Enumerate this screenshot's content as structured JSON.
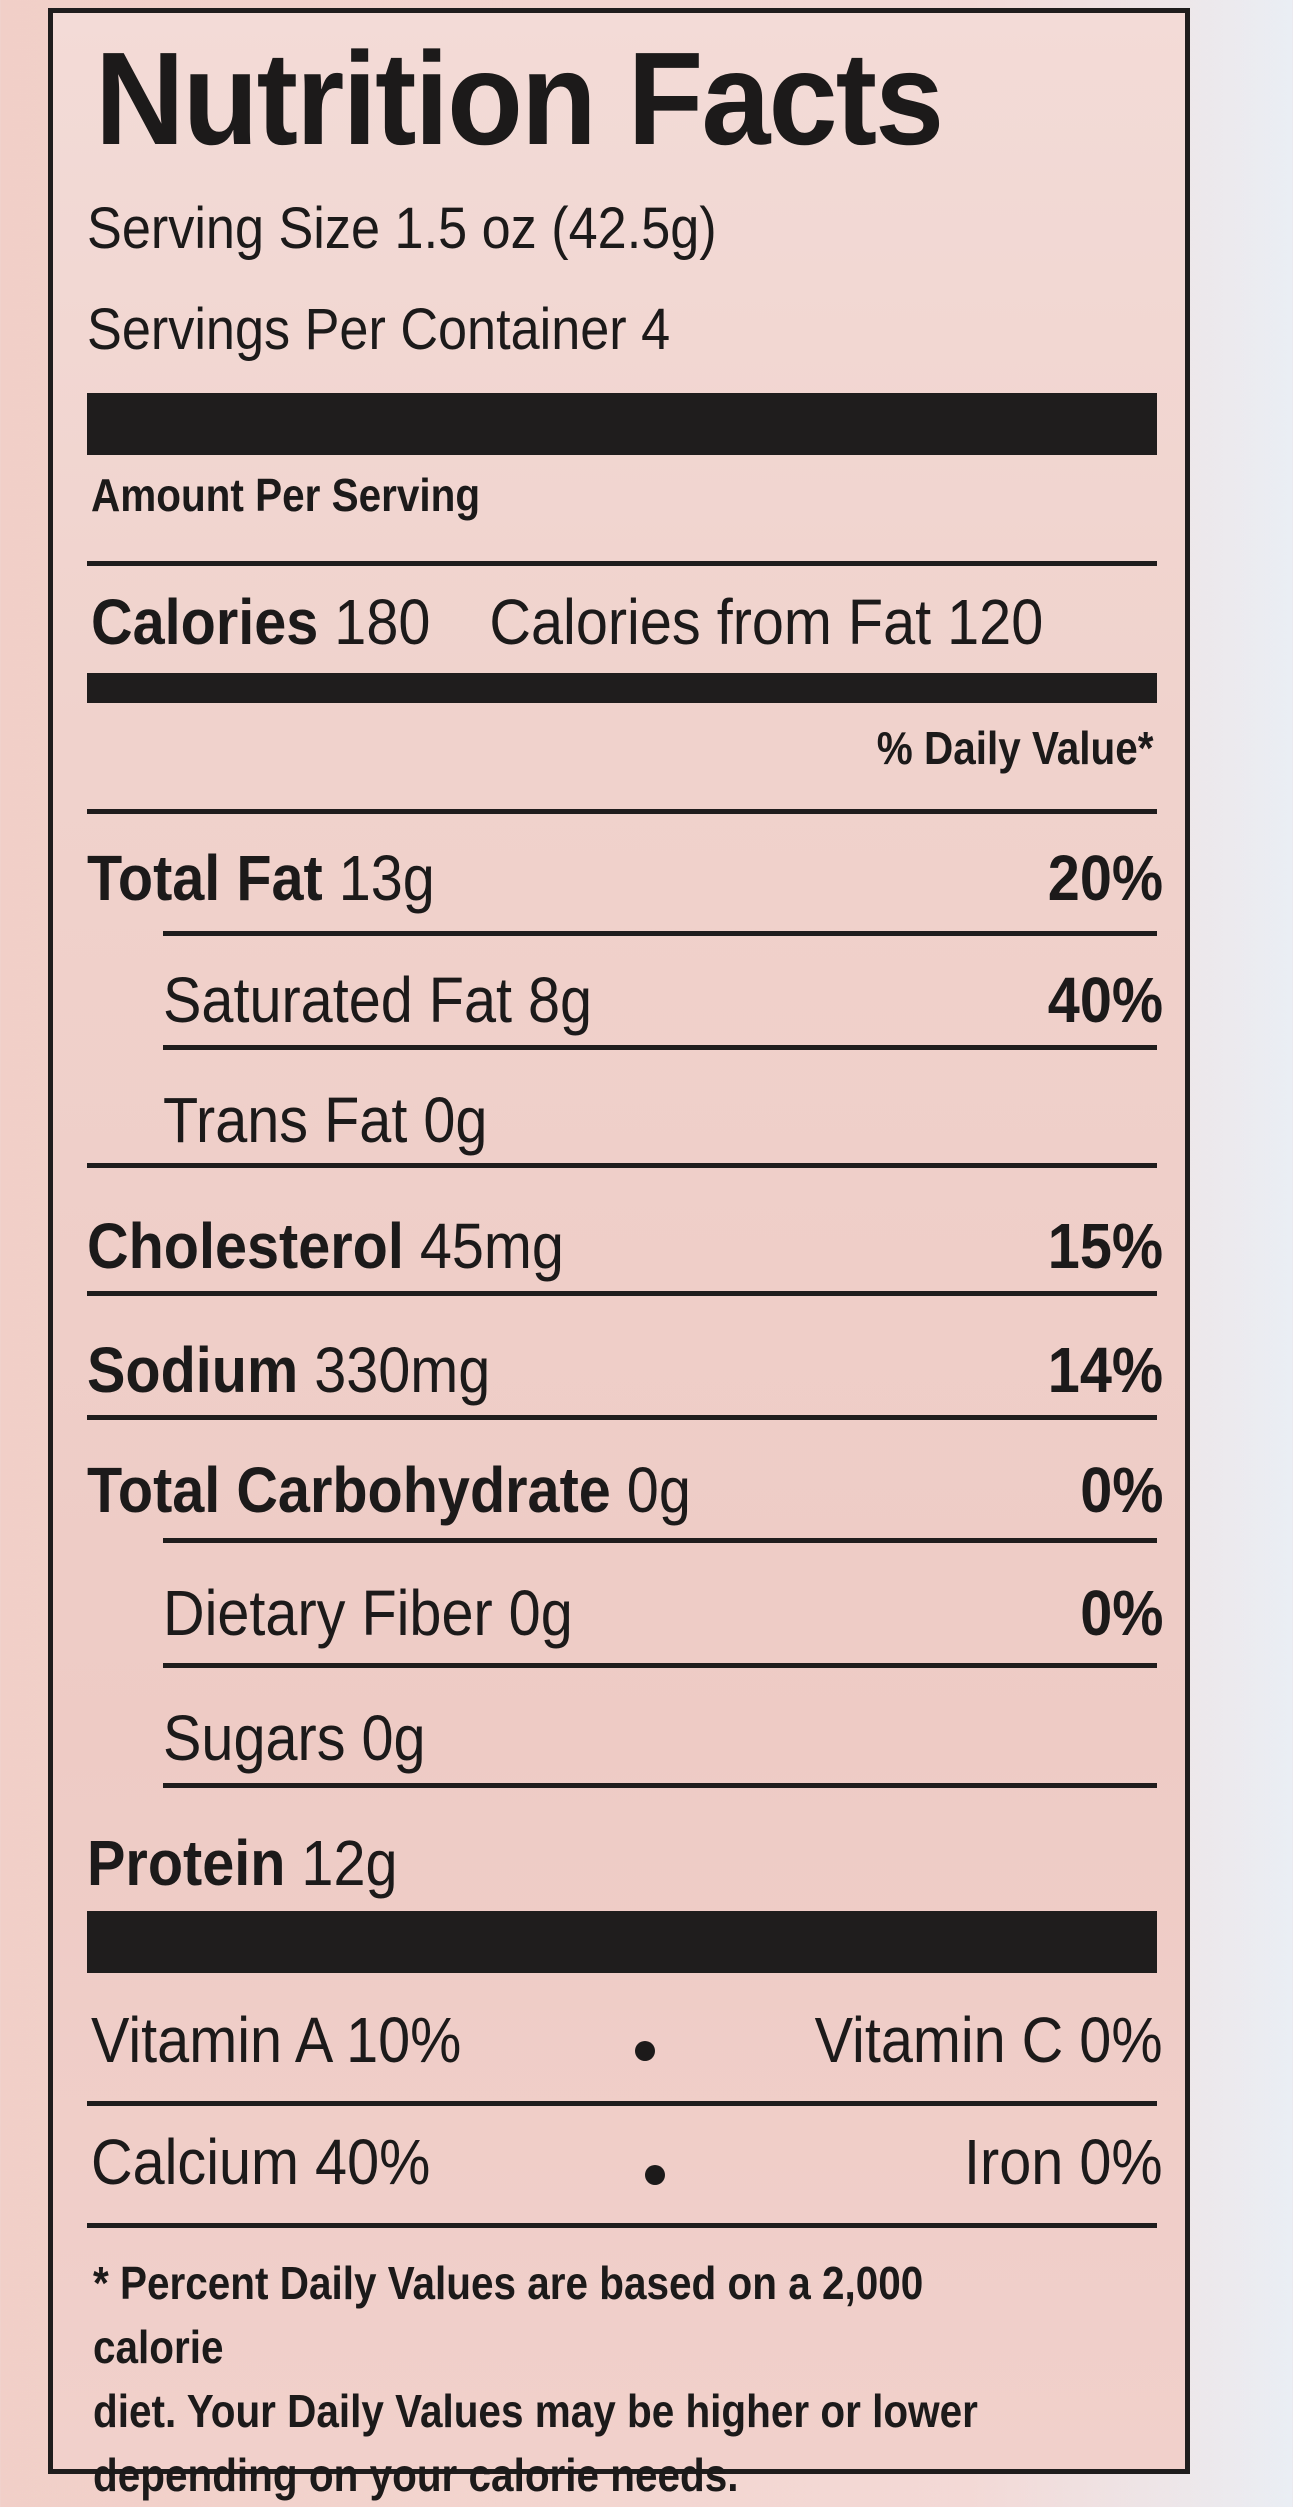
{
  "label": {
    "title": "Nutrition Facts",
    "serving_size": "Serving Size 1.5 oz (42.5g)",
    "servings_per_container": "Servings Per Container 4",
    "amount_per_serving": "Amount Per Serving",
    "calories_label": "Calories",
    "calories_value": "180",
    "calories_from_fat": "Calories from Fat 120",
    "daily_value_header": "% Daily Value*",
    "nutrients": [
      {
        "name": "Total Fat",
        "amount": "13g",
        "dv": "20%"
      },
      {
        "name": "Saturated Fat",
        "amount": "8g",
        "dv": "40%"
      },
      {
        "name": "Trans Fat",
        "amount": "0g",
        "dv": ""
      },
      {
        "name": "Cholesterol",
        "amount": "45mg",
        "dv": "15%"
      },
      {
        "name": "Sodium",
        "amount": "330mg",
        "dv": "14%"
      },
      {
        "name": "Total Carbohydrate",
        "amount": "0g",
        "dv": "0%"
      },
      {
        "name": "Dietary Fiber",
        "amount": "0g",
        "dv": "0%"
      },
      {
        "name": "Sugars",
        "amount": "0g",
        "dv": ""
      },
      {
        "name": "Protein",
        "amount": "12g",
        "dv": ""
      }
    ],
    "vitamins": [
      {
        "left": "Vitamin A 10%",
        "right": "Vitamin C 0%"
      },
      {
        "left": "Calcium 40%",
        "right": "Iron 0%"
      }
    ],
    "footnote": "* Percent Daily Values are based on a 2,000 calorie\ndiet. Your Daily  Values may be higher  or lower\ndepending on your calorie needs."
  }
}
